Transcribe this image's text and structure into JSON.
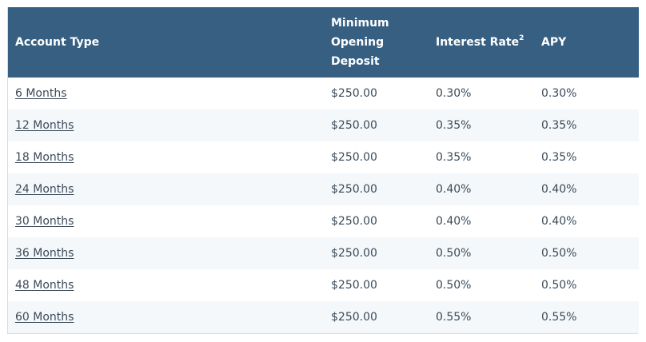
{
  "table": {
    "headers": {
      "account_type": "Account Type",
      "min_deposit_line1": "Minimum",
      "min_deposit_line2": "Opening",
      "min_deposit_line3": "Deposit",
      "interest_rate": "Interest Rate",
      "interest_rate_sup": "2",
      "apy": "APY"
    },
    "rows": [
      {
        "account": "6 Months",
        "deposit": "$250.00",
        "rate": "0.30%",
        "apy": "0.30%"
      },
      {
        "account": "12 Months",
        "deposit": "$250.00",
        "rate": "0.35%",
        "apy": "0.35%"
      },
      {
        "account": "18 Months",
        "deposit": "$250.00",
        "rate": "0.35%",
        "apy": "0.35%"
      },
      {
        "account": "24 Months",
        "deposit": "$250.00",
        "rate": "0.40%",
        "apy": "0.40%"
      },
      {
        "account": "30 Months",
        "deposit": "$250.00",
        "rate": "0.40%",
        "apy": "0.40%"
      },
      {
        "account": "36 Months",
        "deposit": "$250.00",
        "rate": "0.50%",
        "apy": "0.50%"
      },
      {
        "account": "48 Months",
        "deposit": "$250.00",
        "rate": "0.50%",
        "apy": "0.50%"
      },
      {
        "account": "60 Months",
        "deposit": "$250.00",
        "rate": "0.55%",
        "apy": "0.55%"
      }
    ],
    "colors": {
      "header_bg": "#365f82",
      "header_text": "#ffffff",
      "row_alt_bg": "#f5f8fa",
      "body_text": "#3b4a58"
    }
  }
}
